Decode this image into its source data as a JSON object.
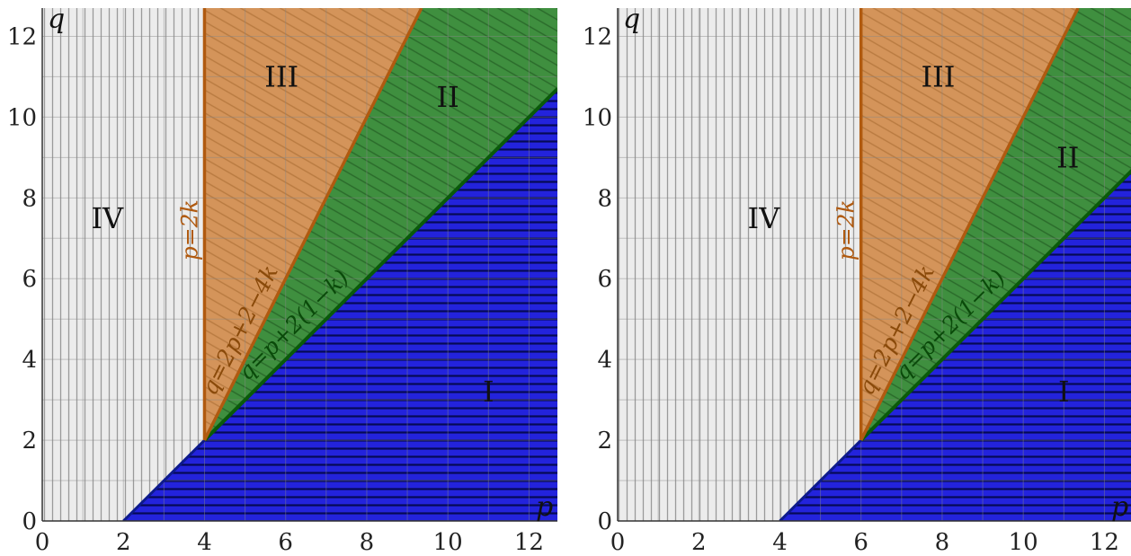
{
  "chart_data": [
    {
      "type": "area",
      "k": 2,
      "xlabel": "p",
      "ylabel": "q",
      "xlim": [
        0,
        12.7
      ],
      "ylim": [
        0,
        12.7
      ],
      "xticks": [
        "0",
        "2",
        "4",
        "6",
        "8",
        "10",
        "12"
      ],
      "yticks": [
        "0",
        "2",
        "4",
        "6",
        "8",
        "10",
        "12"
      ],
      "grid": true,
      "colors": {
        "I": "#1f1fd6",
        "II": "#3f8f3f",
        "III": "#d4945a",
        "IV": "#ececec",
        "line_I": "#0d1a8c",
        "line_II": "#0a5a0a",
        "line_III": "#b05a10"
      },
      "region_labels": {
        "I": "I",
        "II": "II",
        "III": "III",
        "IV": "IV"
      },
      "region_label_positions": {
        "I": [
          11,
          3.2
        ],
        "II": [
          10,
          10.5
        ],
        "III": [
          5.9,
          11
        ],
        "IV": [
          1.6,
          7.5
        ]
      },
      "lines": {
        "vertical": "p=2k",
        "steep": "q=2p+2−4k",
        "diagonal": "q=p+2(1−k)"
      },
      "boundaries": {
        "vertical_p": 4,
        "steep": {
          "slope": 2,
          "intercept": -6
        },
        "diagonal": {
          "slope": 1,
          "intercept": -2
        },
        "corner": [
          4,
          2
        ]
      }
    },
    {
      "type": "area",
      "k": 3,
      "xlabel": "p",
      "ylabel": "q",
      "xlim": [
        0,
        12.7
      ],
      "ylim": [
        0,
        12.7
      ],
      "xticks": [
        "0",
        "2",
        "4",
        "6",
        "8",
        "10",
        "12"
      ],
      "yticks": [
        "0",
        "2",
        "4",
        "6",
        "8",
        "10",
        "12"
      ],
      "grid": true,
      "colors": {
        "I": "#1f1fd6",
        "II": "#3f8f3f",
        "III": "#d4945a",
        "IV": "#ececec",
        "line_I": "#0d1a8c",
        "line_II": "#0a5a0a",
        "line_III": "#b05a10"
      },
      "region_labels": {
        "I": "I",
        "II": "II",
        "III": "III",
        "IV": "IV"
      },
      "region_label_positions": {
        "I": [
          11,
          3.2
        ],
        "II": [
          11.1,
          9
        ],
        "III": [
          7.9,
          11
        ],
        "IV": [
          3.6,
          7.5
        ]
      },
      "lines": {
        "vertical": "p=2k",
        "steep": "q=2p+2−4k",
        "diagonal": "q=p+2(1−k)"
      },
      "boundaries": {
        "vertical_p": 6,
        "steep": {
          "slope": 2,
          "intercept": -10
        },
        "diagonal": {
          "slope": 1,
          "intercept": -4
        },
        "corner": [
          6,
          2
        ]
      }
    }
  ]
}
